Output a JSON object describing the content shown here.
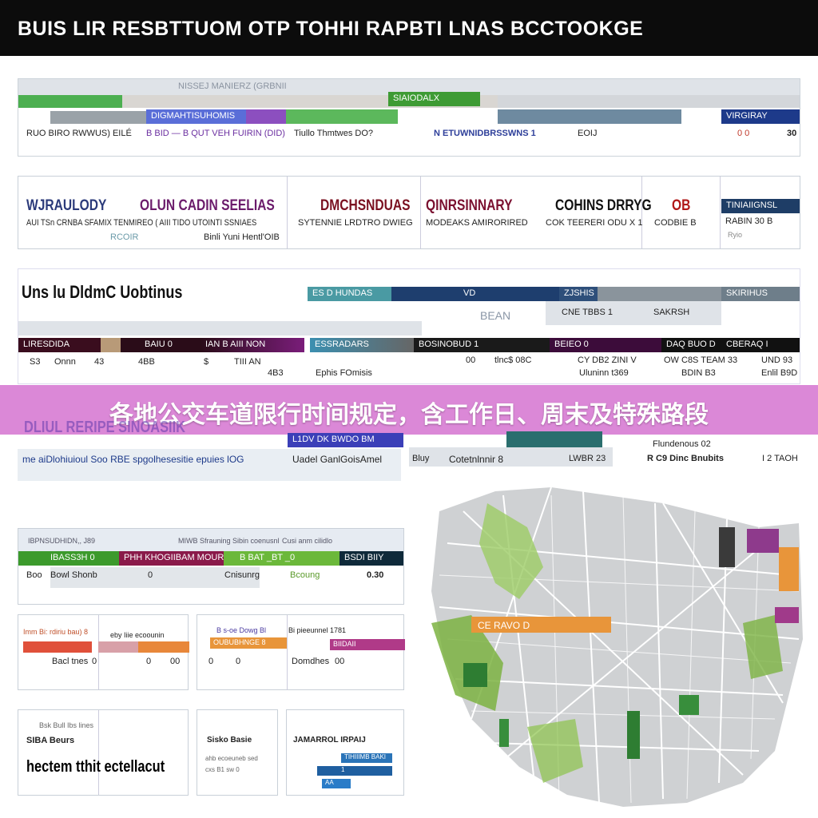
{
  "header": {
    "title": "BUIS LIR  RESBTTUOM OTP TOHHI RAPBTI  LNAS  BCCTOOKGE"
  },
  "banner": {
    "text": "各地公交车道限行时间规定，含工作日、周末及特殊路段"
  },
  "top_table": {
    "caption": "NISSEJ MANIERZ (GRBNII",
    "green_tab": "SIAIODALX",
    "sub_tabs": [
      "DIGMAHTISUHOMIS",
      "VIRGIRAY"
    ],
    "row": [
      "RUO BIRO RWWUS) EILÉ",
      "B BID — B QUT VEH FUIRIN (DID)",
      "Tiullo Thmtwes DO?",
      "N ETUWNIDBRSSWNS 1",
      "EOIJ",
      "0 0",
      "30"
    ]
  },
  "cards": [
    {
      "title_a": "WJRAULODY",
      "title_b": "OLUN CADIN SEELIAS",
      "sub": "AUI TSn CRNBA SFAMIX TENMIREO ( AIII TIDO UTOINTI SSNIAES",
      "foot_a": "RCOIR",
      "foot_b": "Binli Yuni Hentl'OIB"
    },
    {
      "title": "DMCHSNDUAS",
      "sub": "SYTENNIE LRDTRO  DWIEG"
    },
    {
      "title": "QINRSINNARY",
      "sub": "MODEAKS  AMIRORIRED"
    },
    {
      "title": "COHINS DRRYG",
      "sub": "COK TEERERI ODU X 1"
    },
    {
      "title": "OB",
      "sub": "CODBIE B"
    },
    {
      "title": "TINIAIIGNSL",
      "sub": "RABIN 30  B",
      "foot": "Ryio"
    }
  ],
  "mid_section": {
    "title": "Uns lu DldmC Uobtinus",
    "bars": [
      "ES D HUNDAS",
      "VD",
      "ZJSHIS",
      "SKIRIHUS"
    ],
    "cells": [
      "BEAN",
      "CNE TBBS 1",
      "SAKRSH"
    ],
    "dark_bars": [
      "LIRESDIDA",
      "BAIU  0",
      "IAN B AIII NON",
      "ESSRADARS",
      "BOSINOBUD 1",
      "BEIEO  0",
      "DAQ BUO D",
      "CBERAQ I"
    ],
    "values": [
      "S3",
      "Onnn",
      "43",
      "4BB",
      "$",
      "TIII AN",
      "4B3",
      "Ephis FOmisis",
      "00",
      "tlnc$ 08C",
      "CY DB2 ZINI V",
      "OW C8S TEAM 33",
      "UND 93",
      "BDIN B3",
      "Uluninn t369",
      "Enlil B9D"
    ]
  },
  "lower_section": {
    "title": "DLIUL RERIPE SINOASIIK",
    "row_a": "me aiDlohiuioul Soo RBE spgolhesesitie epuies lOG",
    "blue_bar": "L1DV  DK    BWDO  BM",
    "row_b": "Uadel GanlGoisAmel",
    "gray_row": [
      "Bluy",
      "Cotetnlnnir 8",
      "LWBR 23"
    ],
    "right": [
      "Flundenous  02",
      "R C9 Dinc Bnubits",
      "I 2 TAOH"
    ]
  },
  "summary_table": {
    "header": [
      "IBPNSUDHIDN,, J89",
      "MIWB Sfrauning Sibin coenusnl",
      "Cusi anm cilidlo"
    ],
    "bars": [
      "IBASS3H  0",
      "PHH KHOGIIBAM MOUR",
      "B  BAT  _BT  _0",
      "BSDI BIIY"
    ],
    "row": [
      "Boo",
      "Bowl Shonb",
      "0",
      "Cnisunrg",
      "Bcoung",
      "0.30"
    ]
  },
  "small_cards": [
    {
      "head": "Imm Bi: rdiriu  bau) 8",
      "sub": "eby Iiie ecoounin",
      "label": "Bacl tnes",
      "v": [
        "0",
        "0",
        "00"
      ]
    },
    {
      "head": "B s-oe  Dowg  Bl",
      "sub": "Bi pieeunnel 1781",
      "bar": "OUBUBHNGE 8",
      "bar2": "BIIDAII",
      "label": "Domdhes",
      "v": [
        "0",
        "0",
        "00"
      ]
    }
  ],
  "bottom_cards": [
    {
      "small": "Bsk Bull Ibs lines",
      "title": "SIBA Beurs",
      "big": "hectem tthit ectellacut"
    },
    {
      "title": "Sisko Basie",
      "rows": [
        "ahb  ecoeuneb sed",
        "cxs   B1  sw  0"
      ]
    },
    {
      "title": "JAMARROL  IRPAIJ",
      "bars": [
        "TIHIIIMB  BAKI",
        "1",
        "AA"
      ]
    }
  ],
  "map": {
    "label": "CE RAVO  D",
    "colors": {
      "green": "#7cb342",
      "dark_green": "#2e7d32",
      "orange": "#e8953a",
      "purple": "#8e3a8c",
      "land": "#cfd1d3"
    }
  },
  "colors": {
    "green": "#4caf50",
    "purple": "#7b3fa0",
    "navy": "#1d3a8a",
    "maroon": "#6b1030",
    "banner": "#d678d2"
  }
}
